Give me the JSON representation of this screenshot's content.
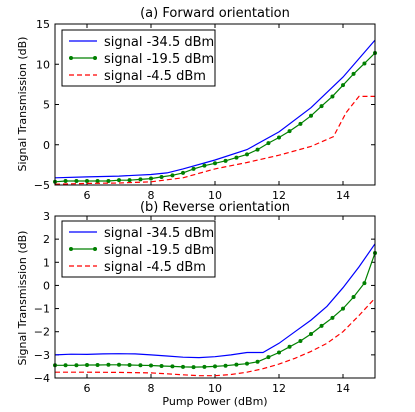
{
  "chart_data": [
    {
      "type": "line",
      "title": "(a) Forward orientation",
      "xlabel": "",
      "ylabel": "Signal Transmission (dB)",
      "xlim": [
        5,
        15
      ],
      "ylim": [
        -5,
        15
      ],
      "xticks": [
        6,
        8,
        10,
        12,
        14
      ],
      "yticks": [
        -5,
        0,
        5,
        10,
        15
      ],
      "legend_position": "top-left",
      "series": [
        {
          "name": "signal -34.5 dBm",
          "color": "#0000ff",
          "style": "solid",
          "x": [
            5,
            6,
            7,
            8,
            8.5,
            9,
            10,
            11,
            12,
            13,
            14,
            15
          ],
          "y": [
            -4.1,
            -4.0,
            -3.9,
            -3.7,
            -3.5,
            -3.0,
            -1.9,
            -0.6,
            1.6,
            4.6,
            8.4,
            13.0
          ]
        },
        {
          "name": "signal -19.5 dBm",
          "color": "#008000",
          "style": "solid-dots",
          "x": [
            5,
            5.33,
            5.67,
            6,
            6.33,
            6.67,
            7,
            7.33,
            7.67,
            8,
            8.33,
            8.67,
            9,
            9.33,
            9.67,
            10,
            10.33,
            10.67,
            11,
            11.33,
            11.67,
            12,
            12.33,
            12.67,
            13,
            13.33,
            13.67,
            14,
            14.33,
            14.67,
            15
          ],
          "y": [
            -4.6,
            -4.5,
            -4.5,
            -4.5,
            -4.5,
            -4.5,
            -4.4,
            -4.4,
            -4.3,
            -4.2,
            -4.0,
            -3.8,
            -3.5,
            -3.0,
            -2.6,
            -2.3,
            -2.0,
            -1.6,
            -1.2,
            -0.6,
            0.2,
            0.9,
            1.7,
            2.6,
            3.6,
            4.8,
            6.0,
            7.4,
            8.8,
            10.1,
            11.4
          ]
        },
        {
          "name": "signal -4.5 dBm",
          "color": "#ff0000",
          "style": "dashed",
          "x": [
            5,
            6,
            7,
            8,
            9,
            10,
            11,
            12,
            13,
            13.7,
            14.1,
            14.5,
            15
          ],
          "y": [
            -4.9,
            -4.8,
            -4.75,
            -4.6,
            -4.1,
            -3.0,
            -2.2,
            -1.3,
            -0.2,
            1.0,
            4.0,
            6.0,
            6.0
          ]
        }
      ]
    },
    {
      "type": "line",
      "title": "(b) Reverse orientation",
      "xlabel": "Pump Power (dBm)",
      "ylabel": "Signal Transmission (dB)",
      "xlim": [
        5,
        15
      ],
      "ylim": [
        -4,
        3
      ],
      "xticks": [
        6,
        8,
        10,
        12,
        14
      ],
      "yticks": [
        -4,
        -3,
        -2,
        -1,
        0,
        1,
        2,
        3
      ],
      "legend_position": "top-left",
      "series": [
        {
          "name": "signal -34.5 dBm",
          "color": "#0000ff",
          "style": "solid",
          "x": [
            5,
            5.5,
            6,
            6.5,
            7,
            7.5,
            8,
            8.5,
            9,
            9.5,
            10,
            10.5,
            11,
            11.5,
            12,
            12.5,
            13,
            13.5,
            14,
            14.5,
            15
          ],
          "y": [
            -3.0,
            -2.97,
            -2.98,
            -2.96,
            -2.95,
            -2.96,
            -3.0,
            -3.05,
            -3.1,
            -3.12,
            -3.08,
            -3.0,
            -2.9,
            -2.9,
            -2.5,
            -2.0,
            -1.5,
            -0.9,
            -0.1,
            0.8,
            1.8
          ]
        },
        {
          "name": "signal -19.5 dBm",
          "color": "#008000",
          "style": "solid-dots",
          "x": [
            5,
            5.33,
            5.67,
            6,
            6.33,
            6.67,
            7,
            7.33,
            7.67,
            8,
            8.33,
            8.67,
            9,
            9.33,
            9.67,
            10,
            10.33,
            10.67,
            11,
            11.33,
            11.67,
            12,
            12.33,
            12.67,
            13,
            13.33,
            13.67,
            14,
            14.33,
            14.67,
            15
          ],
          "y": [
            -3.45,
            -3.45,
            -3.45,
            -3.44,
            -3.44,
            -3.43,
            -3.43,
            -3.44,
            -3.45,
            -3.46,
            -3.48,
            -3.5,
            -3.52,
            -3.53,
            -3.52,
            -3.5,
            -3.47,
            -3.42,
            -3.38,
            -3.3,
            -3.1,
            -2.9,
            -2.65,
            -2.4,
            -2.1,
            -1.75,
            -1.4,
            -1.0,
            -0.5,
            0.1,
            1.4
          ]
        },
        {
          "name": "signal -4.5 dBm",
          "color": "#ff0000",
          "style": "dashed",
          "x": [
            5,
            6,
            7,
            8,
            8.5,
            9,
            9.5,
            10,
            10.5,
            11,
            11.5,
            12,
            12.5,
            13,
            13.5,
            14,
            14.5,
            15
          ],
          "y": [
            -3.75,
            -3.75,
            -3.76,
            -3.78,
            -3.82,
            -3.86,
            -3.9,
            -3.9,
            -3.85,
            -3.75,
            -3.6,
            -3.4,
            -3.15,
            -2.85,
            -2.5,
            -2.0,
            -1.3,
            -0.55
          ]
        }
      ]
    }
  ]
}
